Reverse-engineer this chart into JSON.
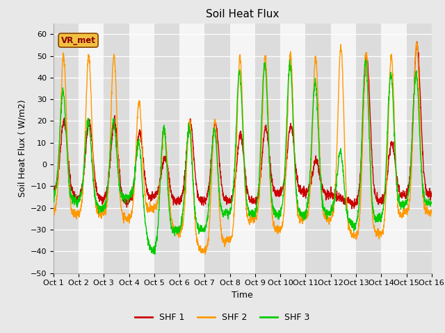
{
  "title": "Soil Heat Flux",
  "xlabel": "Time",
  "ylabel": "Soil Heat Flux ( W/m2)",
  "ylim": [
    -50,
    65
  ],
  "yticks": [
    -50,
    -40,
    -30,
    -20,
    -10,
    0,
    10,
    20,
    30,
    40,
    50,
    60
  ],
  "xlim": [
    0,
    15
  ],
  "xtick_labels": [
    "Oct 1",
    "Oct 2",
    "Oct 3",
    "Oct 4",
    "Oct 5",
    "Oct 6",
    "Oct 7",
    "Oct 8",
    "Oct 9",
    "Oct 10",
    "Oct 11",
    "Oct 12",
    "Oct 13",
    "Oct 14",
    "Oct 15",
    "Oct 16"
  ],
  "color_shf1": "#cc0000",
  "color_shf2": "#ff9900",
  "color_shf3": "#00cc00",
  "legend_label1": "SHF 1",
  "legend_label2": "SHF 2",
  "legend_label3": "SHF 3",
  "watermark_text": "VR_met",
  "bg_color": "#e8e8e8",
  "plot_bg_color": "#f5f5f5",
  "stripe_color": "#dcdcdc",
  "grid_color": "#ffffff",
  "linewidth": 1.0
}
